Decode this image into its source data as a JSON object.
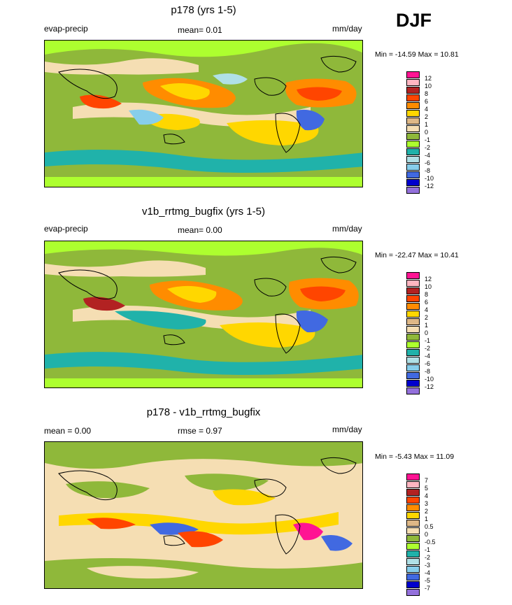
{
  "season": "DJF",
  "panels": [
    {
      "title": "p178 (yrs 1-5)",
      "left_label": "evap-precip",
      "center_label": "mean=   0.01",
      "right_label": "mm/day",
      "minmax": "Min = -14.59 Max =  10.81",
      "levels": [
        "12",
        "10",
        "8",
        "6",
        "4",
        "2",
        "1",
        "0",
        "-1",
        "-2",
        "-4",
        "-6",
        "-8",
        "-10",
        "-12"
      ],
      "colors": [
        "#ff1493",
        "#ffb6c1",
        "#b22222",
        "#ff4500",
        "#ff8c00",
        "#ffd700",
        "#deb887",
        "#f5deb3",
        "#8fb83a",
        "#adff2f",
        "#20b2aa",
        "#b0e0e6",
        "#87ceeb",
        "#4169e1",
        "#0000cd",
        "#9370db"
      ]
    },
    {
      "title": "v1b_rrtmg_bugfix (yrs 1-5)",
      "left_label": "evap-precip",
      "center_label": "mean=   0.00",
      "right_label": "mm/day",
      "minmax": "Min = -22.47 Max =  10.41",
      "levels": [
        "12",
        "10",
        "8",
        "6",
        "4",
        "2",
        "1",
        "0",
        "-1",
        "-2",
        "-4",
        "-6",
        "-8",
        "-10",
        "-12"
      ],
      "colors": [
        "#ff1493",
        "#ffb6c1",
        "#b22222",
        "#ff4500",
        "#ff8c00",
        "#ffd700",
        "#deb887",
        "#f5deb3",
        "#8fb83a",
        "#adff2f",
        "#20b2aa",
        "#b0e0e6",
        "#87ceeb",
        "#4169e1",
        "#0000cd",
        "#9370db"
      ]
    },
    {
      "title": "p178 - v1b_rrtmg_bugfix",
      "left_label": "mean =   0.00",
      "center_label": "rmse =   0.97",
      "right_label": "mm/day",
      "minmax": "Min =  -5.43 Max =  11.09",
      "levels": [
        "7",
        "5",
        "4",
        "3",
        "2",
        "1",
        "0.5",
        "0",
        "-0.5",
        "-1",
        "-2",
        "-3",
        "-4",
        "-5",
        "-7"
      ],
      "colors": [
        "#ff1493",
        "#ffb6c1",
        "#b22222",
        "#ff4500",
        "#ff8c00",
        "#ffd700",
        "#deb887",
        "#f5deb3",
        "#8fb83a",
        "#adff2f",
        "#20b2aa",
        "#b0e0e6",
        "#87ceeb",
        "#4169e1",
        "#0000cd",
        "#9370db"
      ]
    }
  ]
}
